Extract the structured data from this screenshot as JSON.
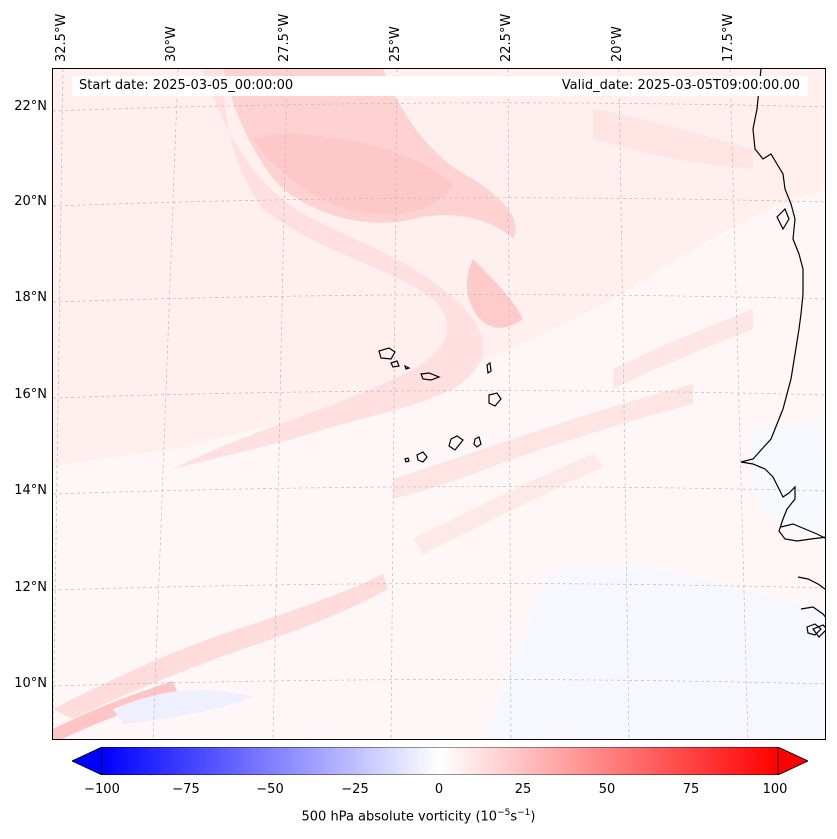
{
  "header": {
    "start_date": "Start date: 2025-03-05_00:00:00",
    "valid_date": "Valid_date: 2025-03-05T09:00:00.00"
  },
  "map": {
    "longitude_labels": [
      "32.5°W",
      "30°W",
      "27.5°W",
      "25°W",
      "22.5°W",
      "20°W",
      "17.5°W"
    ],
    "latitude_labels": [
      "22°N",
      "20°N",
      "18°N",
      "16°N",
      "14°N",
      "12°N",
      "10°N"
    ],
    "features": [
      "Cape Verde islands",
      "West African coastline"
    ],
    "colors": {
      "positive": "#ff0000",
      "negative": "#0000ff",
      "neutral": "#ffffff",
      "coastline": "#000000"
    }
  },
  "colorbar": {
    "label": "500 hPa absolute vorticity (10",
    "label_exp1": "−5",
    "label_mid": "s",
    "label_exp2": "−1",
    "label_end": ")",
    "ticks": [
      "−100",
      "−75",
      "−50",
      "−25",
      "0",
      "25",
      "50",
      "75",
      "100"
    ],
    "range": [
      -100,
      100
    ]
  }
}
